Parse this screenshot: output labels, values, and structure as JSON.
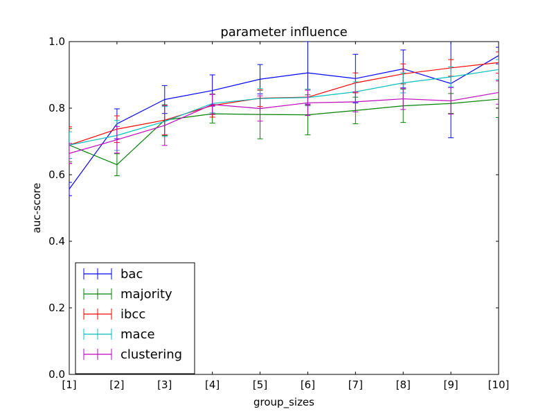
{
  "chart_data": {
    "type": "line",
    "title": "parameter influence",
    "xlabel": "group_sizes",
    "ylabel": "auc-score",
    "categories": [
      "[1]",
      "[2]",
      "[3]",
      "[4]",
      "[5]",
      "[6]",
      "[7]",
      "[8]",
      "[9]",
      "[10]"
    ],
    "ylim": [
      0.0,
      1.0
    ],
    "yticks": [
      "0.0",
      "0.2",
      "0.4",
      "0.6",
      "0.8",
      "1.0"
    ],
    "error_bars": true,
    "legend_position": "lower-left",
    "series": [
      {
        "name": "bac",
        "color": "#0000ff",
        "values": [
          0.557,
          0.753,
          0.826,
          0.853,
          0.887,
          0.906,
          0.889,
          0.918,
          0.874,
          0.958
        ],
        "errors": [
          0.02,
          0.045,
          0.042,
          0.047,
          0.044,
          0.094,
          0.073,
          0.057,
          0.163,
          0.025
        ]
      },
      {
        "name": "majority",
        "color": "#008000",
        "values": [
          0.689,
          0.63,
          0.764,
          0.783,
          0.781,
          0.78,
          0.793,
          0.807,
          0.814,
          0.827
        ],
        "errors": [
          0.05,
          0.033,
          0.046,
          0.028,
          0.073,
          0.06,
          0.04,
          0.05,
          0.03,
          0.055
        ]
      },
      {
        "name": "ibcc",
        "color": "#ff0000",
        "values": [
          0.689,
          0.737,
          0.764,
          0.808,
          0.83,
          0.833,
          0.876,
          0.903,
          0.921,
          0.937
        ],
        "errors": [
          0.055,
          0.04,
          0.044,
          0.035,
          0.025,
          0.024,
          0.03,
          0.03,
          0.025,
          0.032
        ]
      },
      {
        "name": "mace",
        "color": "#00bfbf",
        "values": [
          0.689,
          0.718,
          0.76,
          0.814,
          0.829,
          0.832,
          0.849,
          0.876,
          0.894,
          0.916
        ],
        "errors": [
          0.04,
          0.045,
          0.045,
          0.028,
          0.03,
          0.025,
          0.03,
          0.03,
          0.03,
          0.03
        ]
      },
      {
        "name": "clustering",
        "color": "#bf00bf",
        "values": [
          0.664,
          0.705,
          0.748,
          0.811,
          0.799,
          0.816,
          0.819,
          0.828,
          0.822,
          0.847
        ],
        "errors": [
          0.03,
          0.04,
          0.06,
          0.03,
          0.038,
          0.038,
          0.03,
          0.032,
          0.04,
          0.035
        ]
      }
    ]
  }
}
